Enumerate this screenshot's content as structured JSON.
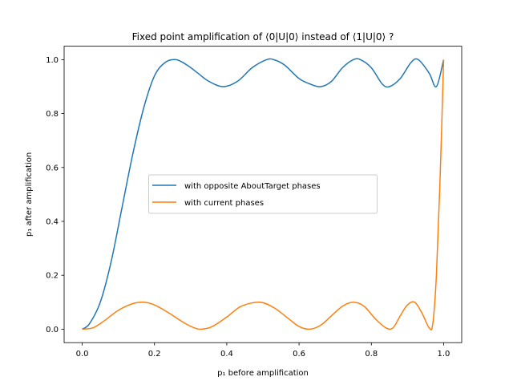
{
  "chart_data": {
    "type": "line",
    "title": "Fixed point amplification of ⟨0|U|0⟩ instead of ⟨1|U|0⟩ ?",
    "xlabel": "p₁ before amplification",
    "ylabel": "p₁ after amplification",
    "xlim": [
      -0.05,
      1.05
    ],
    "ylim": [
      -0.05,
      1.05
    ],
    "xticks": [
      0.0,
      0.2,
      0.4,
      0.6,
      0.8,
      1.0
    ],
    "yticks": [
      0.0,
      0.2,
      0.4,
      0.6,
      0.8,
      1.0
    ],
    "xtick_labels": [
      "0.0",
      "0.2",
      "0.4",
      "0.6",
      "0.8",
      "1.0"
    ],
    "ytick_labels": [
      "0.0",
      "0.2",
      "0.4",
      "0.6",
      "0.8",
      "1.0"
    ],
    "grid": false,
    "legend_placement": "center",
    "series": [
      {
        "name": "with opposite AboutTarget phases",
        "color": "#1f77b4",
        "x": [
          0.0,
          0.02,
          0.05,
          0.08,
          0.11,
          0.14,
          0.17,
          0.2,
          0.23,
          0.26,
          0.29,
          0.32,
          0.35,
          0.39,
          0.43,
          0.47,
          0.51,
          0.53,
          0.56,
          0.6,
          0.63,
          0.66,
          0.69,
          0.72,
          0.75,
          0.77,
          0.8,
          0.83,
          0.85,
          0.88,
          0.91,
          0.93,
          0.96,
          0.98,
          1.0
        ],
        "y": [
          0.0,
          0.02,
          0.1,
          0.25,
          0.45,
          0.65,
          0.82,
          0.94,
          0.99,
          1.0,
          0.98,
          0.95,
          0.92,
          0.9,
          0.92,
          0.97,
          1.0,
          1.0,
          0.98,
          0.93,
          0.91,
          0.9,
          0.92,
          0.97,
          1.0,
          1.0,
          0.97,
          0.91,
          0.9,
          0.93,
          0.99,
          1.0,
          0.95,
          0.9,
          1.0
        ]
      },
      {
        "name": "with current phases",
        "color": "#ff7f0e",
        "x": [
          0.0,
          0.03,
          0.06,
          0.1,
          0.14,
          0.17,
          0.2,
          0.24,
          0.28,
          0.31,
          0.33,
          0.36,
          0.4,
          0.44,
          0.49,
          0.53,
          0.57,
          0.6,
          0.63,
          0.66,
          0.69,
          0.72,
          0.75,
          0.78,
          0.81,
          0.84,
          0.86,
          0.88,
          0.9,
          0.92,
          0.94,
          0.96,
          0.97,
          0.98,
          0.99,
          1.0
        ],
        "y": [
          0.0,
          0.005,
          0.03,
          0.07,
          0.095,
          0.1,
          0.09,
          0.06,
          0.025,
          0.005,
          0.0,
          0.01,
          0.045,
          0.085,
          0.1,
          0.08,
          0.04,
          0.01,
          0.0,
          0.015,
          0.05,
          0.085,
          0.1,
          0.085,
          0.04,
          0.005,
          0.005,
          0.05,
          0.09,
          0.1,
          0.06,
          0.005,
          0.02,
          0.2,
          0.55,
          1.0
        ]
      }
    ]
  }
}
